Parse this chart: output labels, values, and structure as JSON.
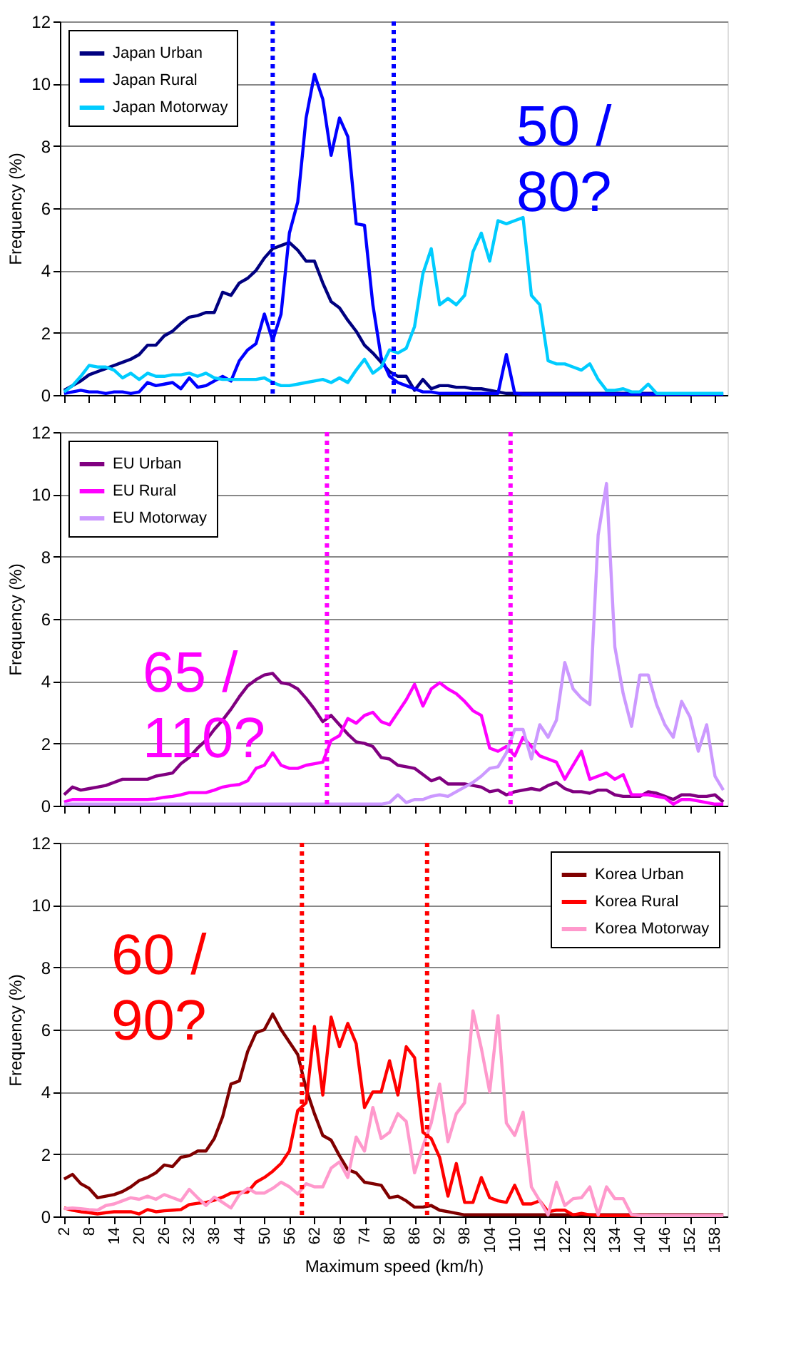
{
  "chart_data": [
    {
      "type": "line",
      "ylabel": "Frequency (%)",
      "xlim": [
        1,
        161
      ],
      "xticks": [
        2,
        8,
        14,
        20,
        26,
        32,
        38,
        44,
        50,
        56,
        62,
        68,
        74,
        80,
        86,
        92,
        98,
        104,
        110,
        116,
        122,
        128,
        134,
        140,
        146,
        152,
        158
      ],
      "ylim": [
        0,
        12
      ],
      "yticks": [
        0,
        2,
        4,
        6,
        8,
        10,
        12
      ],
      "grid": "y",
      "legend": "top left",
      "tick_labels": "y",
      "annotations": [
        "50 /\n80?"
      ],
      "x": [
        2,
        4,
        6,
        8,
        10,
        12,
        14,
        16,
        18,
        20,
        22,
        24,
        26,
        28,
        30,
        32,
        34,
        36,
        38,
        40,
        42,
        44,
        46,
        48,
        50,
        52,
        54,
        56,
        58,
        60,
        62,
        64,
        66,
        68,
        70,
        72,
        74,
        76,
        78,
        80,
        82,
        84,
        86,
        88,
        90,
        92,
        94,
        96,
        98,
        100,
        102,
        104,
        106,
        108,
        110,
        112,
        114,
        116,
        118,
        120,
        122,
        124,
        126,
        128,
        130,
        132,
        134,
        136,
        138,
        140,
        142,
        144,
        146,
        148,
        150,
        152,
        154,
        156,
        158,
        160
      ],
      "ref_lines": [
        {
          "axis": "x",
          "value": 52,
          "color": "#0000ff",
          "line_style": "dotted"
        },
        {
          "axis": "x",
          "value": 81,
          "color": "#0000ff",
          "line_style": "dotted"
        }
      ],
      "series": [
        {
          "name": "Japan Urban",
          "color": "#000080",
          "values": [
            0.15,
            0.3,
            0.45,
            0.65,
            0.75,
            0.85,
            0.95,
            1.05,
            1.15,
            1.3,
            1.6,
            1.6,
            1.9,
            2.05,
            2.3,
            2.5,
            2.55,
            2.65,
            2.65,
            3.3,
            3.2,
            3.6,
            3.75,
            4.0,
            4.4,
            4.7,
            4.8,
            4.9,
            4.65,
            4.3,
            4.3,
            3.6,
            3.0,
            2.8,
            2.4,
            2.05,
            1.6,
            1.35,
            1.05,
            0.75,
            0.6,
            0.6,
            0.15,
            0.5,
            0.2,
            0.3,
            0.3,
            0.25,
            0.25,
            0.2,
            0.2,
            0.15,
            0.1,
            0.05,
            0.05,
            0.05,
            0.05,
            0.05,
            0.05,
            0.05,
            0.05,
            0.05,
            0.05,
            0.05,
            0.05,
            0.05,
            0.05,
            0.05,
            0.05,
            0.05,
            0.05,
            0.05,
            null,
            null,
            null,
            null,
            null,
            null,
            null,
            null
          ]
        },
        {
          "name": "Japan Rural",
          "color": "#0000ff",
          "values": [
            0.05,
            0.1,
            0.15,
            0.1,
            0.1,
            0.05,
            0.1,
            0.1,
            0.05,
            0.1,
            0.4,
            0.3,
            0.35,
            0.4,
            0.2,
            0.55,
            0.25,
            0.3,
            0.45,
            0.6,
            0.45,
            1.1,
            1.45,
            1.65,
            2.6,
            1.75,
            2.6,
            5.2,
            6.2,
            8.9,
            10.3,
            9.5,
            7.7,
            8.9,
            8.3,
            5.5,
            5.45,
            2.9,
            1.2,
            0.6,
            0.4,
            0.3,
            0.2,
            0.1,
            0.1,
            0.05,
            0.05,
            0.05,
            0.05,
            0.05,
            0.05,
            0.05,
            0.05,
            1.3,
            0.05,
            0.03,
            0.03,
            0.03,
            0.03,
            0.03,
            0.03,
            0.03,
            0.03,
            0.03,
            0.03,
            0.03,
            0.03,
            0.03,
            0.03,
            0.03,
            0.03,
            0.03,
            0.03,
            0.03,
            0.03,
            0.03,
            0.03,
            0.03,
            0.03,
            0.03
          ]
        },
        {
          "name": "Japan Motorway",
          "color": "#00ccff",
          "values": [
            0.1,
            0.3,
            0.6,
            0.95,
            0.9,
            0.9,
            0.8,
            0.55,
            0.7,
            0.5,
            0.7,
            0.6,
            0.6,
            0.65,
            0.65,
            0.7,
            0.6,
            0.7,
            0.55,
            0.5,
            0.5,
            0.5,
            0.5,
            0.5,
            0.55,
            0.4,
            0.3,
            0.3,
            0.35,
            0.4,
            0.45,
            0.5,
            0.4,
            0.55,
            0.4,
            0.8,
            1.15,
            0.7,
            0.9,
            1.45,
            1.35,
            1.5,
            2.2,
            3.9,
            4.7,
            2.9,
            3.1,
            2.9,
            3.2,
            4.6,
            5.2,
            4.3,
            5.6,
            5.5,
            5.6,
            5.7,
            3.2,
            2.9,
            1.1,
            1.0,
            1.0,
            0.9,
            0.8,
            1.0,
            0.5,
            0.15,
            0.15,
            0.2,
            0.1,
            0.1,
            0.35,
            0.05,
            0.05,
            0.05,
            0.05,
            0.05,
            0.05,
            0.05,
            0.05,
            0.05
          ]
        }
      ]
    },
    {
      "type": "line",
      "ylabel": "Frequency (%)",
      "xlim": [
        1,
        161
      ],
      "xticks": [
        2,
        8,
        14,
        20,
        26,
        32,
        38,
        44,
        50,
        56,
        62,
        68,
        74,
        80,
        86,
        92,
        98,
        104,
        110,
        116,
        122,
        128,
        134,
        140,
        146,
        152,
        158
      ],
      "ylim": [
        0,
        12
      ],
      "yticks": [
        0,
        2,
        4,
        6,
        8,
        10,
        12
      ],
      "grid": "y",
      "legend": "top left",
      "tick_labels": "y",
      "annotations": [
        "65 /\n110?"
      ],
      "x": [
        2,
        4,
        6,
        8,
        10,
        12,
        14,
        16,
        18,
        20,
        22,
        24,
        26,
        28,
        30,
        32,
        34,
        36,
        38,
        40,
        42,
        44,
        46,
        48,
        50,
        52,
        54,
        56,
        58,
        60,
        62,
        64,
        66,
        68,
        70,
        72,
        74,
        76,
        78,
        80,
        82,
        84,
        86,
        88,
        90,
        92,
        94,
        96,
        98,
        100,
        102,
        104,
        106,
        108,
        110,
        112,
        114,
        116,
        118,
        120,
        122,
        124,
        126,
        128,
        130,
        132,
        134,
        136,
        138,
        140,
        142,
        144,
        146,
        148,
        150,
        152,
        154,
        156,
        158,
        160
      ],
      "ref_lines": [
        {
          "axis": "x",
          "value": 65,
          "color": "#ff00ff",
          "line_style": "dotted"
        },
        {
          "axis": "x",
          "value": 109,
          "color": "#ff00ff",
          "line_style": "dotted"
        }
      ],
      "series": [
        {
          "name": "EU Urban",
          "color": "#800080",
          "values": [
            0.35,
            0.6,
            0.5,
            0.55,
            0.6,
            0.65,
            0.75,
            0.85,
            0.85,
            0.85,
            0.85,
            0.95,
            1.0,
            1.05,
            1.35,
            1.55,
            1.85,
            2.1,
            2.45,
            2.75,
            3.1,
            3.5,
            3.85,
            4.05,
            4.2,
            4.25,
            3.95,
            3.9,
            3.75,
            3.45,
            3.1,
            2.7,
            2.9,
            2.6,
            2.3,
            2.05,
            2.0,
            1.9,
            1.55,
            1.5,
            1.3,
            1.25,
            1.2,
            1.0,
            0.8,
            0.9,
            0.7,
            0.7,
            0.7,
            0.65,
            0.6,
            0.45,
            0.5,
            0.35,
            0.45,
            0.5,
            0.55,
            0.5,
            0.65,
            0.75,
            0.55,
            0.45,
            0.45,
            0.4,
            0.5,
            0.5,
            0.35,
            0.3,
            0.3,
            0.3,
            0.45,
            0.4,
            0.3,
            0.2,
            0.35,
            0.35,
            0.3,
            0.3,
            0.35,
            0.12
          ]
        },
        {
          "name": "EU Rural",
          "color": "#ff00ff",
          "values": [
            0.12,
            0.2,
            0.2,
            0.2,
            0.2,
            0.2,
            0.2,
            0.2,
            0.2,
            0.2,
            0.2,
            0.22,
            0.27,
            0.3,
            0.35,
            0.42,
            0.42,
            0.42,
            0.5,
            0.6,
            0.65,
            0.68,
            0.8,
            1.2,
            1.3,
            1.7,
            1.3,
            1.2,
            1.2,
            1.3,
            1.35,
            1.4,
            2.1,
            2.25,
            2.8,
            2.65,
            2.9,
            3.0,
            2.7,
            2.6,
            3.0,
            3.4,
            3.9,
            3.2,
            3.75,
            3.95,
            3.75,
            3.6,
            3.35,
            3.05,
            2.9,
            1.85,
            1.75,
            1.9,
            1.6,
            2.2,
            1.9,
            1.6,
            1.5,
            1.4,
            0.85,
            1.3,
            1.75,
            0.85,
            0.95,
            1.05,
            0.85,
            1.0,
            0.35,
            0.35,
            0.35,
            0.3,
            0.25,
            0.05,
            0.2,
            0.2,
            0.15,
            0.1,
            0.05,
            0.05
          ]
        },
        {
          "name": "EU Motorway",
          "color": "#cc99ff",
          "values": [
            0.05,
            0.05,
            0.05,
            0.05,
            0.05,
            0.05,
            0.05,
            0.05,
            0.05,
            0.05,
            0.05,
            0.05,
            0.05,
            0.05,
            0.05,
            0.05,
            0.05,
            0.05,
            0.05,
            0.05,
            0.05,
            0.05,
            0.05,
            0.05,
            0.05,
            0.05,
            0.05,
            0.05,
            0.05,
            0.05,
            0.05,
            0.05,
            0.05,
            0.05,
            0.05,
            0.05,
            0.05,
            0.05,
            0.05,
            0.1,
            0.35,
            0.1,
            0.2,
            0.2,
            0.3,
            0.35,
            0.3,
            0.45,
            0.6,
            0.75,
            0.95,
            1.2,
            1.25,
            1.7,
            2.45,
            2.45,
            1.5,
            2.6,
            2.2,
            2.75,
            4.6,
            3.75,
            3.45,
            3.25,
            8.7,
            10.35,
            5.1,
            3.6,
            2.55,
            4.2,
            4.2,
            3.25,
            2.6,
            2.2,
            3.35,
            2.85,
            1.75,
            2.6,
            0.95,
            0.5
          ]
        }
      ]
    },
    {
      "type": "line",
      "ylabel": "Frequency (%)",
      "xlabel": "Maximum speed (km/h)",
      "xlim": [
        1,
        161
      ],
      "xticks": [
        2,
        8,
        14,
        20,
        26,
        32,
        38,
        44,
        50,
        56,
        62,
        68,
        74,
        80,
        86,
        92,
        98,
        104,
        110,
        116,
        122,
        128,
        134,
        140,
        146,
        152,
        158
      ],
      "ylim": [
        0,
        12
      ],
      "yticks": [
        0,
        2,
        4,
        6,
        8,
        10,
        12
      ],
      "grid": "y",
      "legend": "top right",
      "annotations": [
        "60 /\n90?"
      ],
      "x": [
        2,
        4,
        6,
        8,
        10,
        12,
        14,
        16,
        18,
        20,
        22,
        24,
        26,
        28,
        30,
        32,
        34,
        36,
        38,
        40,
        42,
        44,
        46,
        48,
        50,
        52,
        54,
        56,
        58,
        60,
        62,
        64,
        66,
        68,
        70,
        72,
        74,
        76,
        78,
        80,
        82,
        84,
        86,
        88,
        90,
        92,
        94,
        96,
        98,
        100,
        102,
        104,
        106,
        108,
        110,
        112,
        114,
        116,
        118,
        120,
        122,
        124,
        126,
        128,
        130,
        132,
        134,
        136,
        138,
        140,
        142,
        144,
        146,
        148,
        150,
        152,
        154,
        156,
        158,
        160
      ],
      "ref_lines": [
        {
          "axis": "x",
          "value": 59,
          "color": "#ff0000",
          "line_style": "dotted"
        },
        {
          "axis": "x",
          "value": 89,
          "color": "#ff0000",
          "line_style": "dotted"
        }
      ],
      "series": [
        {
          "name": "Korea Urban",
          "color": "#800000",
          "values": [
            1.2,
            1.35,
            1.05,
            0.9,
            0.6,
            0.65,
            0.7,
            0.8,
            0.95,
            1.15,
            1.25,
            1.4,
            1.65,
            1.6,
            1.9,
            1.95,
            2.1,
            2.1,
            2.5,
            3.2,
            4.25,
            4.35,
            5.3,
            5.9,
            6.0,
            6.5,
            6.0,
            5.6,
            5.2,
            4.1,
            3.3,
            2.6,
            2.45,
            1.95,
            1.5,
            1.4,
            1.1,
            1.05,
            1.0,
            0.6,
            0.65,
            0.5,
            0.3,
            0.3,
            0.35,
            0.2,
            0.15,
            0.1,
            0.05,
            0.05,
            0.05,
            0.05,
            0.05,
            0.05,
            0.05,
            0.05,
            0.05,
            0.05,
            0.05,
            0.05,
            0.05,
            0.05,
            0.05,
            0.05,
            0.05,
            0.05,
            0.05,
            0.05,
            0.05,
            0.05,
            0.05,
            0.05,
            0.05,
            0.05,
            0.05,
            0.05,
            0.05,
            0.05,
            0.05,
            0.05
          ]
        },
        {
          "name": "Korea Rural",
          "color": "#ff0000",
          "values": [
            0.27,
            0.2,
            0.15,
            0.12,
            0.08,
            0.12,
            0.15,
            0.15,
            0.15,
            0.08,
            0.22,
            0.15,
            0.18,
            0.2,
            0.22,
            0.38,
            0.42,
            0.45,
            0.52,
            0.62,
            0.75,
            0.78,
            0.78,
            1.1,
            1.25,
            1.45,
            1.7,
            2.1,
            3.4,
            3.65,
            6.1,
            3.9,
            6.4,
            5.45,
            6.2,
            5.55,
            3.5,
            4.0,
            4.0,
            5.0,
            3.9,
            5.45,
            5.1,
            2.7,
            2.5,
            1.9,
            0.65,
            1.7,
            0.45,
            0.45,
            1.25,
            0.6,
            0.5,
            0.45,
            1.0,
            0.4,
            0.4,
            0.5,
            0.15,
            0.2,
            0.2,
            0.05,
            0.1,
            0.05,
            0.03,
            0.03,
            0.03,
            0.03,
            0.03,
            0.03,
            0.03,
            null,
            null,
            null,
            null,
            null,
            null,
            null,
            null,
            null
          ]
        },
        {
          "name": "Korea Motorway",
          "color": "#ff99cc",
          "values": [
            0.25,
            0.27,
            0.25,
            0.22,
            0.2,
            0.35,
            0.4,
            0.5,
            0.6,
            0.55,
            0.65,
            0.55,
            0.7,
            0.6,
            0.5,
            0.87,
            0.6,
            0.35,
            0.62,
            0.45,
            0.27,
            0.7,
            0.9,
            0.75,
            0.75,
            0.9,
            1.1,
            0.95,
            0.72,
            1.05,
            0.95,
            0.95,
            1.55,
            1.75,
            1.25,
            2.55,
            2.1,
            3.5,
            2.5,
            2.7,
            3.3,
            3.05,
            1.4,
            2.25,
            3.0,
            4.25,
            2.4,
            3.3,
            3.65,
            6.6,
            5.4,
            4.0,
            6.45,
            3.0,
            2.6,
            3.35,
            0.95,
            0.5,
            0.05,
            1.1,
            0.35,
            0.57,
            0.6,
            0.95,
            0.05,
            0.95,
            0.57,
            0.57,
            0.05,
            0.03,
            0.03,
            0.03,
            0.03,
            0.03,
            0.03,
            0.03,
            0.03,
            0.03,
            0.03,
            0.03
          ]
        }
      ]
    }
  ]
}
